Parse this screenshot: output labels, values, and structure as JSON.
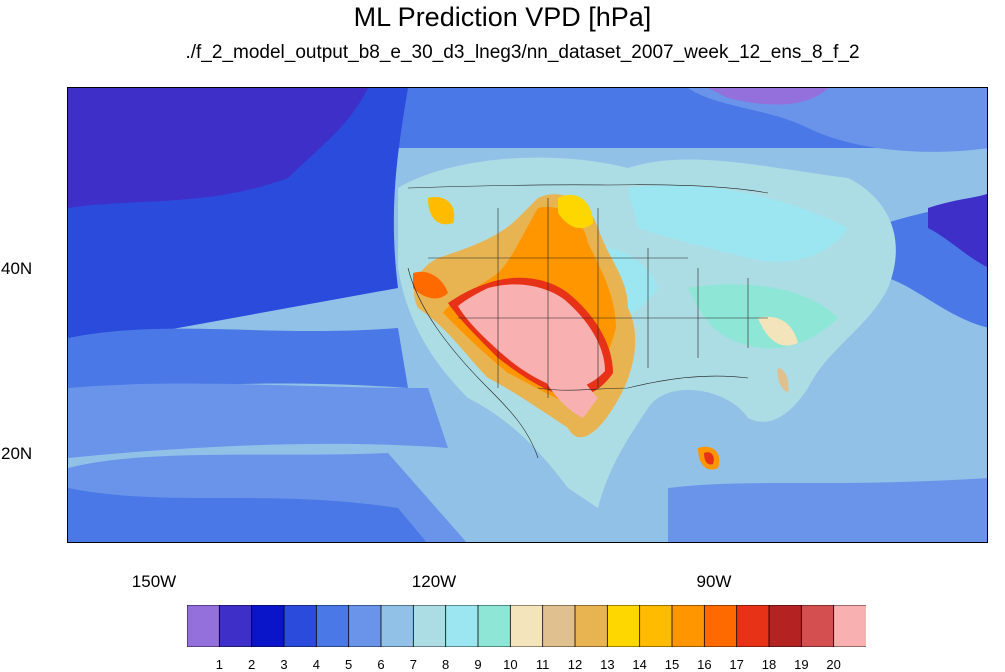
{
  "title": "ML Prediction VPD [hPa]",
  "subtitle": "./f_2_model_output_b8_e_30_d3_lneg3/nn_dataset_2007_week_12_ens_8_f_2",
  "chart_data": {
    "type": "heatmap",
    "title": "ML Prediction VPD [hPa]",
    "subtitle": "./f_2_model_output_b8_e_30_d3_lneg3/nn_dataset_2007_week_12_ens_8_f_2",
    "x_ticks": [
      "150W",
      "120W",
      "90W"
    ],
    "y_ticks": [
      "40N",
      "20N"
    ],
    "lon_range": [
      -159,
      -61
    ],
    "lat_range": [
      10,
      59
    ],
    "colorbar": {
      "levels": [
        "1",
        "2",
        "3",
        "4",
        "5",
        "6",
        "7",
        "8",
        "9",
        "10",
        "11",
        "12",
        "13",
        "14",
        "15",
        "16",
        "17",
        "18",
        "19",
        "20"
      ],
      "colors": [
        "#9370db",
        "#3d2fc8",
        "#0a14c8",
        "#2b4bdc",
        "#4a78e6",
        "#6a94ea",
        "#92c1e8",
        "#addde4",
        "#9be6f0",
        "#8ee6d6",
        "#f3e4bc",
        "#dfc08e",
        "#e8b452",
        "#ffd700",
        "#ffbb00",
        "#ff9600",
        "#ff6a00",
        "#e83218",
        "#b42222",
        "#d45050",
        "#f8b0b0"
      ]
    }
  }
}
